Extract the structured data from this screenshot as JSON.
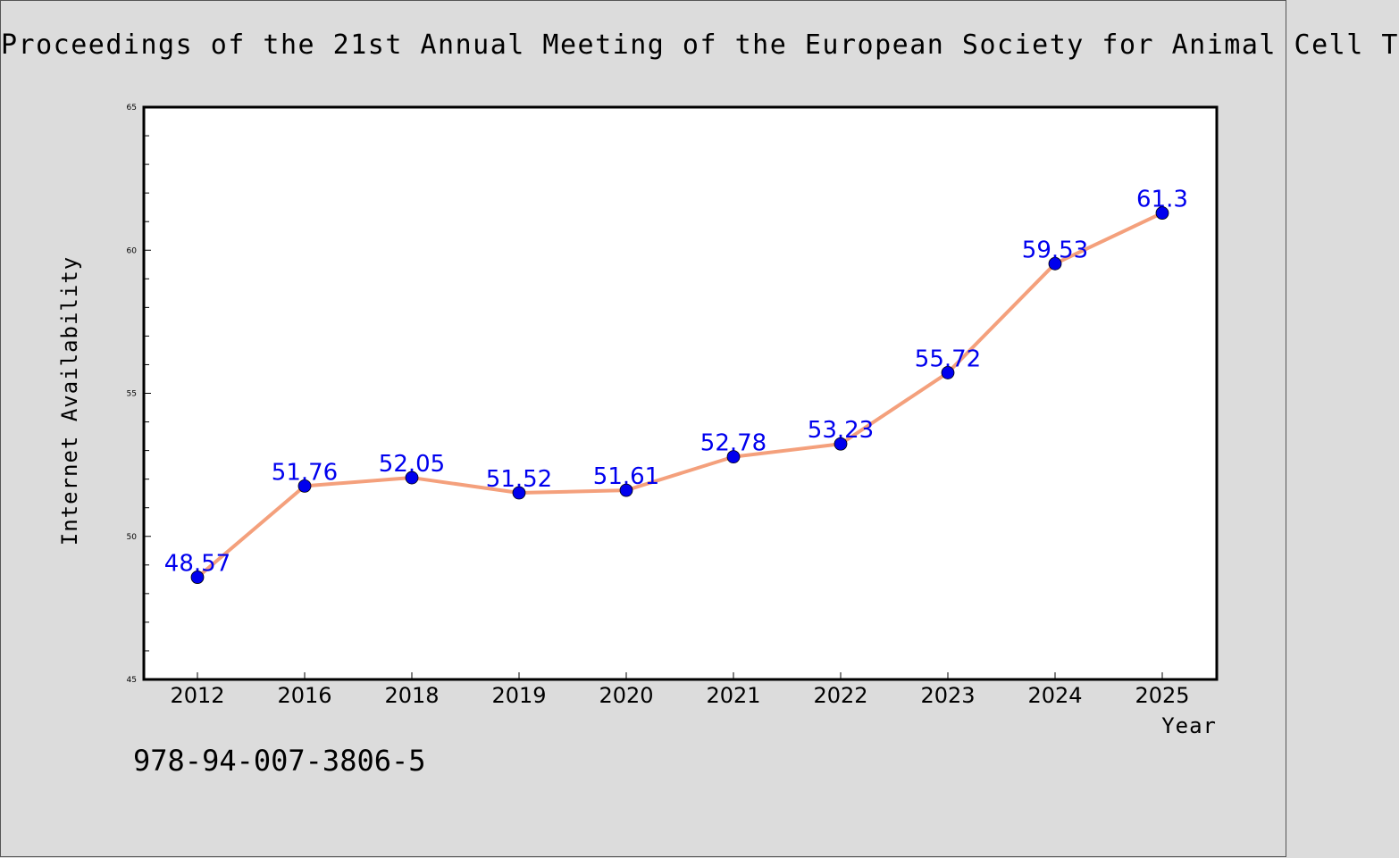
{
  "header": {
    "title": "Proceedings of the 21st Annual Meeting of the European Society for Animal Cell T"
  },
  "footer": {
    "isbn": "978-94-007-3806-5"
  },
  "chart_data": {
    "type": "line",
    "title": "Proceedings of the 21st Annual Meeting of the European Society for Animal Cell T",
    "xlabel": "Year",
    "ylabel": "Internet Availability",
    "categories": [
      "2012",
      "2016",
      "2018",
      "2019",
      "2020",
      "2021",
      "2022",
      "2023",
      "2024",
      "2025"
    ],
    "series": [
      {
        "values": [
          48.57,
          51.76,
          52.05,
          51.52,
          51.61,
          52.78,
          53.23,
          55.72,
          59.53,
          61.3
        ],
        "data_labels": [
          "48.57",
          "51.76",
          "52.05",
          "51.52",
          "51.61",
          "52.78",
          "53.23",
          "55.72",
          "59.53",
          "61.3"
        ]
      }
    ],
    "ylim": [
      45,
      65
    ],
    "yticks": [
      45,
      50,
      55,
      60,
      65
    ],
    "grid": false,
    "colors": {
      "line": "#f4a07c",
      "marker": "#0000ee",
      "data_label": "#0000ee",
      "plot_background": "#ffffff",
      "page_background": "#dcdcdc"
    }
  }
}
